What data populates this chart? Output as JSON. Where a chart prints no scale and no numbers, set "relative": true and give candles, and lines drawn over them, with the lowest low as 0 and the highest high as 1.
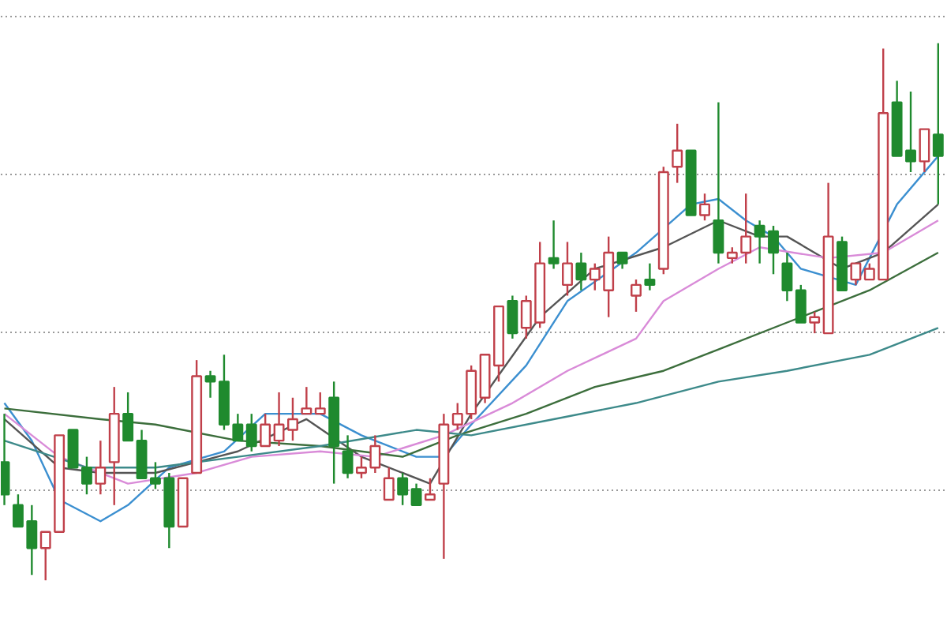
{
  "chart_data": {
    "type": "candlestick",
    "relative": true,
    "grid": "y",
    "categories": [
      null,
      null,
      null,
      null,
      null,
      null,
      null,
      null,
      null,
      null,
      null,
      null,
      null,
      null,
      null,
      null,
      null,
      null,
      null,
      null,
      null,
      null,
      null,
      null,
      null,
      null,
      null,
      null,
      null,
      null,
      null,
      null,
      null,
      null,
      null,
      null,
      null,
      null,
      null,
      null,
      null,
      null,
      null,
      null,
      null,
      null,
      null,
      null,
      null,
      null,
      null,
      null,
      null,
      null,
      null,
      null,
      null,
      null,
      null,
      null,
      null,
      null,
      null,
      null,
      null,
      null,
      null,
      null,
      null
    ],
    "ohlc": [
      [
        0.22,
        0.31,
        0.14,
        0.16
      ],
      [
        0.14,
        0.16,
        0.1,
        0.1
      ],
      [
        0.11,
        0.14,
        0.01,
        0.06
      ],
      [
        0.06,
        0.09,
        0.0,
        0.09
      ],
      [
        0.09,
        0.27,
        0.09,
        0.27
      ],
      [
        0.28,
        0.28,
        0.21,
        0.21
      ],
      [
        0.21,
        0.23,
        0.16,
        0.18
      ],
      [
        0.18,
        0.26,
        0.16,
        0.21
      ],
      [
        0.22,
        0.36,
        0.14,
        0.31
      ],
      [
        0.31,
        0.35,
        0.26,
        0.26
      ],
      [
        0.26,
        0.28,
        0.19,
        0.19
      ],
      [
        0.19,
        0.22,
        0.17,
        0.18
      ],
      [
        0.19,
        0.2,
        0.06,
        0.1
      ],
      [
        0.1,
        0.19,
        0.1,
        0.19
      ],
      [
        0.2,
        0.41,
        0.2,
        0.38
      ],
      [
        0.38,
        0.39,
        0.34,
        0.37
      ],
      [
        0.37,
        0.42,
        0.28,
        0.29
      ],
      [
        0.29,
        0.31,
        0.26,
        0.26
      ],
      [
        0.29,
        0.31,
        0.24,
        0.25
      ],
      [
        0.25,
        0.31,
        0.25,
        0.29
      ],
      [
        0.26,
        0.35,
        0.25,
        0.29
      ],
      [
        0.28,
        0.34,
        0.26,
        0.3
      ],
      [
        0.31,
        0.36,
        0.31,
        0.32
      ],
      [
        0.31,
        0.35,
        0.31,
        0.32
      ],
      [
        0.34,
        0.37,
        0.18,
        0.25
      ],
      [
        0.24,
        0.27,
        0.19,
        0.2
      ],
      [
        0.2,
        0.23,
        0.19,
        0.21
      ],
      [
        0.21,
        0.27,
        0.2,
        0.25
      ],
      [
        0.15,
        0.21,
        0.15,
        0.19
      ],
      [
        0.19,
        0.2,
        0.14,
        0.16
      ],
      [
        0.17,
        0.18,
        0.14,
        0.14
      ],
      [
        0.15,
        0.19,
        0.15,
        0.16
      ],
      [
        0.18,
        0.31,
        0.04,
        0.29
      ],
      [
        0.29,
        0.33,
        0.28,
        0.31
      ],
      [
        0.31,
        0.4,
        0.3,
        0.39
      ],
      [
        0.34,
        0.42,
        0.33,
        0.42
      ],
      [
        0.4,
        0.51,
        0.37,
        0.51
      ],
      [
        0.52,
        0.53,
        0.45,
        0.46
      ],
      [
        0.47,
        0.53,
        0.45,
        0.52
      ],
      [
        0.48,
        0.63,
        0.47,
        0.59
      ],
      [
        0.6,
        0.67,
        0.58,
        0.59
      ],
      [
        0.55,
        0.63,
        0.53,
        0.59
      ],
      [
        0.59,
        0.61,
        0.54,
        0.56
      ],
      [
        0.56,
        0.59,
        0.54,
        0.58
      ],
      [
        0.54,
        0.64,
        0.49,
        0.61
      ],
      [
        0.61,
        0.61,
        0.58,
        0.59
      ],
      [
        0.53,
        0.56,
        0.5,
        0.55
      ],
      [
        0.56,
        0.59,
        0.54,
        0.55
      ],
      [
        0.58,
        0.77,
        0.57,
        0.76
      ],
      [
        0.77,
        0.85,
        0.74,
        0.8
      ],
      [
        0.8,
        0.8,
        0.68,
        0.68
      ],
      [
        0.68,
        0.72,
        0.67,
        0.7
      ],
      [
        0.67,
        0.89,
        0.59,
        0.61
      ],
      [
        0.6,
        0.62,
        0.59,
        0.61
      ],
      [
        0.61,
        0.72,
        0.59,
        0.64
      ],
      [
        0.66,
        0.67,
        0.59,
        0.64
      ],
      [
        0.65,
        0.66,
        0.57,
        0.61
      ],
      [
        0.59,
        0.61,
        0.52,
        0.54
      ],
      [
        0.54,
        0.55,
        0.48,
        0.48
      ],
      [
        0.48,
        0.5,
        0.46,
        0.49
      ],
      [
        0.46,
        0.74,
        0.46,
        0.64
      ],
      [
        0.63,
        0.64,
        0.54,
        0.54
      ],
      [
        0.56,
        0.59,
        0.55,
        0.59
      ],
      [
        0.56,
        0.59,
        0.56,
        0.58
      ],
      [
        0.56,
        0.99,
        0.56,
        0.87
      ],
      [
        0.89,
        0.93,
        0.79,
        0.79
      ],
      [
        0.8,
        0.91,
        0.76,
        0.78
      ],
      [
        0.78,
        0.84,
        0.76,
        0.84
      ],
      [
        0.83,
        1.0,
        0.7,
        0.79
      ]
    ],
    "series": [
      {
        "type": "line",
        "color": "#3b8fd0",
        "values": [
          0.33,
          null,
          0.26,
          null,
          0.15,
          null,
          null,
          0.11,
          null,
          0.14,
          null,
          null,
          0.21,
          null,
          null,
          null,
          0.24,
          null,
          null,
          0.31,
          null,
          null,
          null,
          0.31,
          null,
          null,
          0.27,
          null,
          null,
          null,
          0.23,
          null,
          0.23,
          null,
          0.29,
          null,
          null,
          null,
          0.4,
          null,
          null,
          0.52,
          null,
          null,
          null,
          null,
          0.61,
          null,
          null,
          null,
          0.7,
          null,
          0.71,
          null,
          0.67,
          null,
          0.64,
          null,
          0.58,
          null,
          null,
          null,
          0.55,
          null,
          null,
          0.7,
          null,
          null,
          0.79
        ]
      },
      {
        "type": "line",
        "color": "#555555",
        "values": [
          0.3,
          null,
          null,
          null,
          0.21,
          null,
          null,
          0.2,
          null,
          null,
          null,
          0.2,
          null,
          null,
          null,
          null,
          null,
          0.24,
          null,
          null,
          null,
          null,
          0.3,
          null,
          null,
          null,
          0.23,
          null,
          null,
          null,
          null,
          0.18,
          null,
          null,
          0.31,
          null,
          null,
          null,
          null,
          0.49,
          null,
          null,
          null,
          0.58,
          null,
          null,
          null,
          null,
          0.62,
          null,
          null,
          null,
          0.67,
          null,
          null,
          0.64,
          null,
          0.64,
          null,
          null,
          null,
          0.58,
          null,
          null,
          0.61,
          null,
          null,
          null,
          0.7
        ]
      },
      {
        "type": "line",
        "color": "#d98bd8",
        "values": [
          0.31,
          null,
          null,
          null,
          0.23,
          null,
          null,
          null,
          null,
          0.18,
          null,
          null,
          null,
          null,
          0.2,
          null,
          null,
          null,
          0.23,
          null,
          null,
          null,
          null,
          0.24,
          null,
          null,
          null,
          0.23,
          null,
          null,
          null,
          null,
          0.27,
          null,
          null,
          null,
          null,
          0.33,
          null,
          null,
          null,
          0.39,
          null,
          null,
          null,
          null,
          0.45,
          null,
          0.52,
          null,
          null,
          null,
          0.58,
          null,
          null,
          0.62,
          null,
          null,
          null,
          null,
          0.6,
          null,
          null,
          null,
          0.61,
          null,
          null,
          null,
          0.67
        ]
      },
      {
        "type": "line",
        "color": "#3c6e3c",
        "values": [
          0.32,
          null,
          null,
          null,
          null,
          null,
          null,
          0.3,
          null,
          null,
          null,
          0.29,
          null,
          null,
          null,
          null,
          null,
          0.26,
          null,
          null,
          null,
          null,
          null,
          0.25,
          null,
          null,
          null,
          null,
          null,
          0.23,
          null,
          null,
          null,
          0.27,
          null,
          null,
          null,
          null,
          0.31,
          null,
          null,
          null,
          null,
          0.36,
          null,
          null,
          null,
          null,
          0.39,
          null,
          null,
          null,
          0.43,
          null,
          null,
          null,
          null,
          0.48,
          null,
          null,
          null,
          null,
          null,
          0.54,
          null,
          null,
          null,
          null,
          0.61
        ]
      },
      {
        "type": "line",
        "color": "#3d8a8a",
        "values": [
          0.26,
          null,
          null,
          null,
          null,
          null,
          0.21,
          null,
          null,
          null,
          null,
          0.21,
          null,
          null,
          null,
          null,
          null,
          0.23,
          null,
          null,
          null,
          null,
          null,
          0.25,
          null,
          null,
          null,
          null,
          null,
          null,
          0.28,
          null,
          null,
          null,
          0.27,
          null,
          null,
          null,
          null,
          null,
          0.3,
          null,
          null,
          null,
          null,
          null,
          0.33,
          null,
          null,
          null,
          null,
          null,
          0.37,
          null,
          null,
          null,
          null,
          0.39,
          null,
          null,
          null,
          null,
          null,
          0.42,
          null,
          null,
          null,
          null,
          0.47
        ]
      }
    ]
  }
}
